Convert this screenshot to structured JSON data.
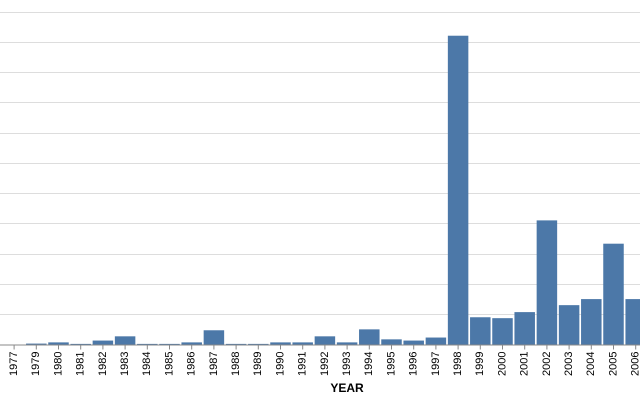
{
  "chart_data": {
    "type": "bar",
    "xlabel": "YEAR",
    "ylabel": "",
    "grid": true,
    "bar_color": "#4c78a8",
    "ylim": [
      0,
      11
    ],
    "categories": [
      "1977",
      "1979",
      "1980",
      "1981",
      "1982",
      "1983",
      "1984",
      "1985",
      "1986",
      "1987",
      "1988",
      "1989",
      "1990",
      "1991",
      "1992",
      "1993",
      "1994",
      "1995",
      "1996",
      "1997",
      "1998",
      "1999",
      "2000",
      "2001",
      "2002",
      "2003",
      "2004",
      "2005",
      "2006"
    ],
    "values": [
      0,
      0.03,
      0.07,
      0.02,
      0.13,
      0.27,
      0.02,
      0.02,
      0.07,
      0.47,
      0.02,
      0.02,
      0.07,
      0.07,
      0.27,
      0.07,
      0.5,
      0.17,
      0.13,
      0.23,
      10.2,
      0.9,
      0.87,
      1.07,
      4.1,
      1.3,
      1.5,
      3.33,
      1.5
    ]
  }
}
